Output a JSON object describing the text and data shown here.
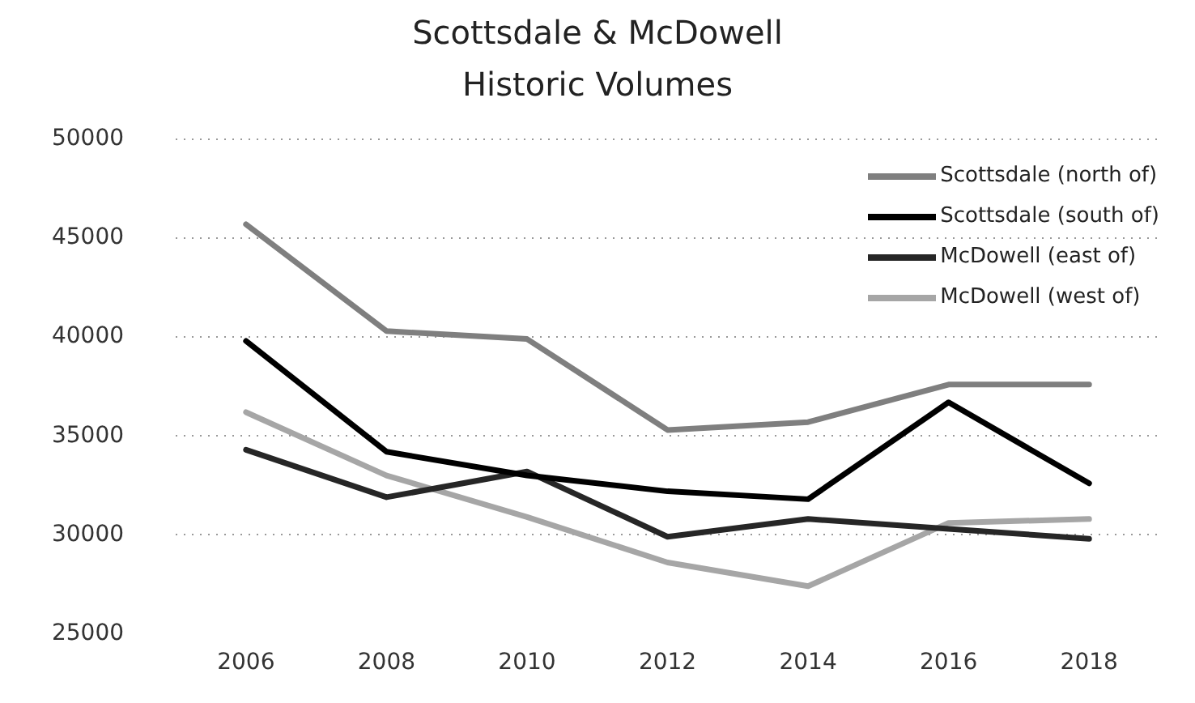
{
  "chart_data": {
    "type": "line",
    "title": "Scottsdale & McDowell\nHistoric Volumes",
    "categories": [
      "2006",
      "2008",
      "2010",
      "2012",
      "2014",
      "2016",
      "2018"
    ],
    "series": [
      {
        "name": "Scottsdale (north of)",
        "color": "#7f7f7f",
        "values": [
          45700,
          40300,
          39900,
          35300,
          35700,
          37600,
          37600
        ]
      },
      {
        "name": "Scottsdale (south of)",
        "color": "#000000",
        "values": [
          39800,
          34200,
          33000,
          32200,
          31800,
          36700,
          32600
        ]
      },
      {
        "name": "McDowell (east of)",
        "color": "#262626",
        "values": [
          34300,
          31900,
          33200,
          29900,
          30800,
          30300,
          29800
        ]
      },
      {
        "name": "McDowell (west of)",
        "color": "#a6a6a6",
        "values": [
          36200,
          33000,
          30900,
          28600,
          27400,
          30600,
          30800
        ]
      }
    ],
    "ylim": [
      25000,
      50000
    ],
    "yticks": [
      25000,
      30000,
      35000,
      40000,
      45000,
      50000
    ],
    "grid": "y",
    "legend": "top right",
    "marker": "none",
    "line_style": "solid"
  }
}
